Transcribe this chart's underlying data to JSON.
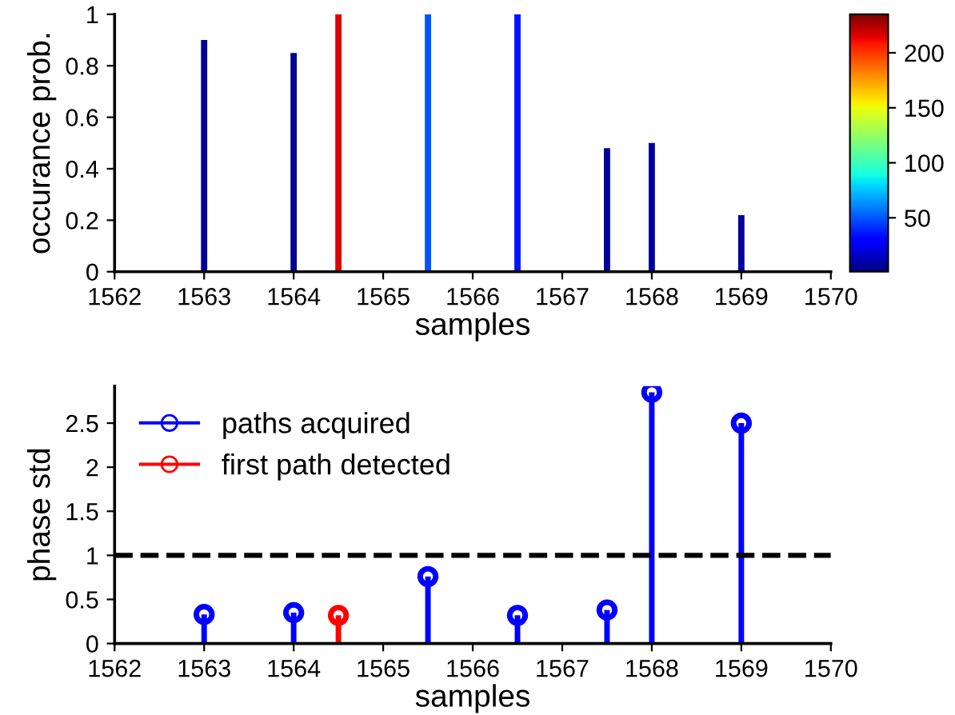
{
  "chart_data": [
    {
      "type": "bar",
      "xlabel": "samples",
      "ylabel": "occurance prob.",
      "x": [
        1563,
        1564,
        1564.5,
        1565.5,
        1566.5,
        1567.5,
        1568,
        1569
      ],
      "values": [
        0.9,
        0.85,
        1,
        1,
        1,
        0.48,
        0.5,
        0.22
      ],
      "cvalues": [
        5,
        5,
        215,
        50,
        35,
        8,
        8,
        8
      ],
      "clim": [
        1,
        235
      ],
      "cticks": [
        50,
        100,
        150,
        200
      ],
      "xlim": [
        1562,
        1570
      ],
      "xticks": [
        1562,
        1563,
        1564,
        1565,
        1566,
        1567,
        1568,
        1569,
        1570
      ],
      "ylim": [
        0,
        1
      ],
      "yticks": [
        0,
        0.2,
        0.4,
        0.6,
        0.8,
        1
      ],
      "grid": false
    },
    {
      "type": "lollipop",
      "xlabel": "samples",
      "ylabel": "phase std",
      "x": [
        1563,
        1564,
        1564.5,
        1565.5,
        1566.5,
        1567.5,
        1568,
        1569
      ],
      "series": [
        {
          "name": "paths acquired",
          "color": "#0000ff",
          "values": [
            0.33,
            0.35,
            null,
            0.76,
            0.32,
            0.38,
            2.85,
            2.5
          ]
        },
        {
          "name": "first path detected",
          "color": "#ff0000",
          "values": [
            null,
            null,
            0.32,
            null,
            null,
            null,
            null,
            null
          ]
        }
      ],
      "marker": "circle",
      "ref_lines": [
        {
          "axis": "y",
          "value": 1,
          "color": "#000000",
          "line_style": "dashed"
        }
      ],
      "xlim": [
        1562,
        1570
      ],
      "xticks": [
        1562,
        1563,
        1564,
        1565,
        1566,
        1567,
        1568,
        1569,
        1570
      ],
      "ylim": [
        0,
        2.92
      ],
      "yticks": [
        0,
        0.5,
        1,
        1.5,
        2,
        2.5
      ],
      "legend": "top left"
    }
  ]
}
